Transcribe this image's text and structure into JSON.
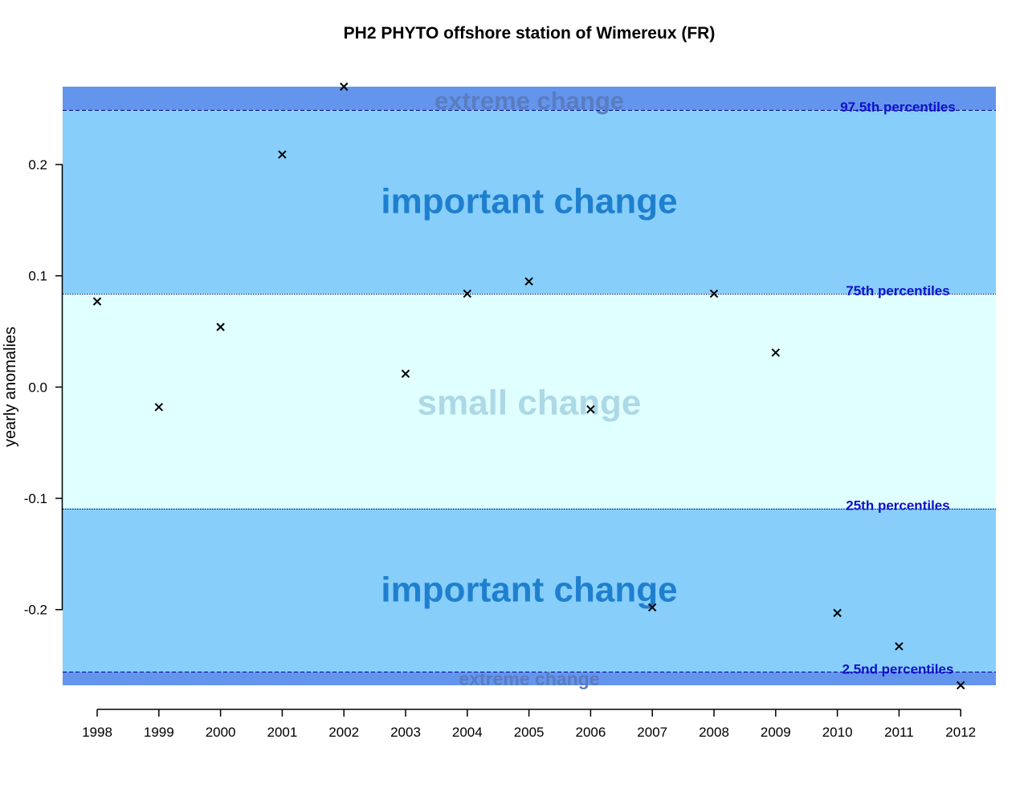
{
  "chart_data": {
    "type": "scatter",
    "title": "PH2 PHYTO offshore station of Wimereux (FR)",
    "xlabel": "",
    "ylabel": "yearly anomalies",
    "x": [
      1998,
      1999,
      2000,
      2001,
      2002,
      2003,
      2004,
      2005,
      2006,
      2007,
      2008,
      2009,
      2010,
      2011,
      2012
    ],
    "values": [
      0.077,
      -0.018,
      0.054,
      0.209,
      0.27,
      0.012,
      0.084,
      0.095,
      -0.02,
      -0.198,
      0.084,
      0.031,
      -0.203,
      -0.233,
      -0.268
    ],
    "marker": "x",
    "xlim": [
      1997.44,
      2012.57
    ],
    "ylim": [
      -0.268,
      0.27
    ],
    "x_ticks": [
      "1998",
      "1999",
      "2000",
      "2001",
      "2002",
      "2003",
      "2004",
      "2005",
      "2006",
      "2007",
      "2008",
      "2009",
      "2010",
      "2011",
      "2012"
    ],
    "y_ticks": [
      {
        "value": 0.2,
        "label": "0.2"
      },
      {
        "value": 0.1,
        "label": "0.1"
      },
      {
        "value": 0.0,
        "label": "0.0"
      },
      {
        "value": -0.1,
        "label": "-0.1"
      },
      {
        "value": -0.2,
        "label": "-0.2"
      }
    ],
    "grid": false,
    "percentiles": [
      {
        "name": "p97_5",
        "value": 0.249,
        "label": "97.5th percentiles",
        "line": "dashed"
      },
      {
        "name": "p75",
        "value": 0.084,
        "label": "75th percentiles",
        "line": "dotted"
      },
      {
        "name": "p25",
        "value": -0.109,
        "label": "25th percentiles",
        "line": "dotted"
      },
      {
        "name": "p2_5",
        "value": -0.256,
        "label": "2.5nd percentiles",
        "line": "dashed"
      }
    ],
    "zones": [
      {
        "name": "extreme-top",
        "from": 0.249,
        "to": 0.27,
        "label": "extreme change",
        "fill": "#6495ed",
        "text_color": "#5a7cc0",
        "label_value": 0.258,
        "size": "small"
      },
      {
        "name": "important-top",
        "from": 0.084,
        "to": 0.249,
        "label": "important change",
        "fill": "#87cefa",
        "text_color": "#1f7fcf",
        "label_value": 0.168,
        "size": "big"
      },
      {
        "name": "small",
        "from": -0.109,
        "to": 0.084,
        "label": "small change",
        "fill": "#e0ffff",
        "text_color": "#add8e6",
        "label_value": -0.013,
        "size": "big"
      },
      {
        "name": "important-bottom",
        "from": -0.256,
        "to": -0.109,
        "label": "important change",
        "fill": "#87cefa",
        "text_color": "#1f7fcf",
        "label_value": -0.181,
        "size": "big"
      },
      {
        "name": "extreme-bottom",
        "from": -0.268,
        "to": -0.256,
        "label": "extreme change",
        "fill": "#6495ed",
        "text_color": "#5a7cc0",
        "label_value": -0.262,
        "size": "smaller"
      }
    ],
    "colors": {
      "percentile_line": "#00008b",
      "percentile_label": "#1010c8",
      "marker": "#000000"
    }
  }
}
